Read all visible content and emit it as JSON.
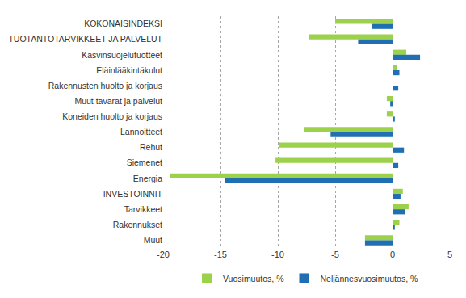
{
  "chart_data": {
    "type": "bar",
    "orientation": "horizontal",
    "categories": [
      "KOKONAISINDEKSI",
      "TUOTANTOTARVIKKEET JA PALVELUT",
      "Kasvinsuojelutuotteet",
      "Eläinlääkintäkulut",
      "Rakennusten huolto ja korjaus",
      "Muut tavarat ja palvelut",
      "Koneiden huolto ja korjaus",
      "Lannoitteet",
      "Rehut",
      "Siemenet",
      "Energia",
      "INVESTOINNIT",
      "Tarvikkeet",
      "Rakennukset",
      "Muut"
    ],
    "series": [
      {
        "name": "Vuosimuutos, %",
        "color": "#9bd14b",
        "values": [
          -5.0,
          -7.3,
          1.2,
          0.4,
          0.0,
          -0.5,
          -0.5,
          -7.7,
          -9.9,
          -10.2,
          -19.4,
          0.9,
          1.4,
          0.6,
          -2.4
        ]
      },
      {
        "name": "Neljännesvuosimuutos, %",
        "color": "#1f6fb2",
        "values": [
          -1.8,
          -3.0,
          2.4,
          0.6,
          0.5,
          -0.2,
          0.2,
          -5.4,
          1.0,
          0.5,
          -14.6,
          0.7,
          1.1,
          0.2,
          -2.4
        ]
      }
    ],
    "xlim": [
      -20,
      5
    ],
    "xticks": [
      -20,
      -15,
      -10,
      -5,
      0,
      5
    ],
    "grid": true,
    "legend": "bottom"
  }
}
